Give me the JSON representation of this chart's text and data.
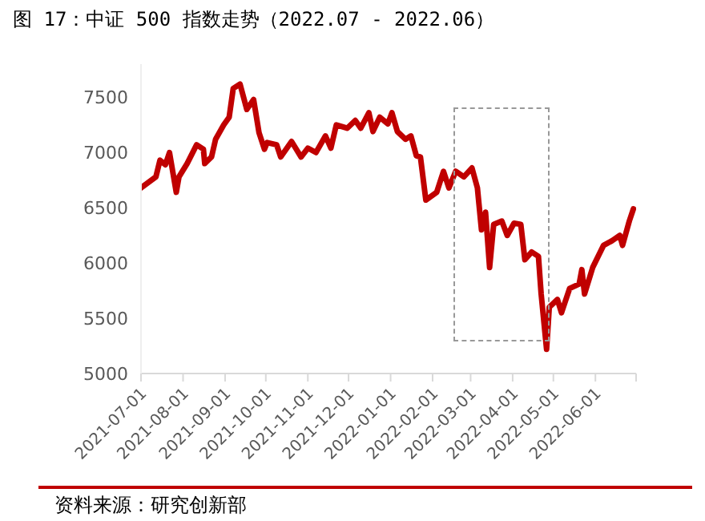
{
  "chart_data": {
    "type": "line",
    "title": "图 17：中证 500 指数走势（2022.07 - 2022.06）",
    "annotations": [
      "资料来源：研究创新部"
    ],
    "x": [
      "2021-07-01",
      "2021-07-12",
      "2021-07-15",
      "2021-07-19",
      "2021-07-22",
      "2021-07-27",
      "2021-07-29",
      "2021-08-04",
      "2021-08-11",
      "2021-08-16",
      "2021-08-17",
      "2021-08-22",
      "2021-08-25",
      "2021-08-31",
      "2021-09-04",
      "2021-09-07",
      "2021-09-12",
      "2021-09-17",
      "2021-09-22",
      "2021-09-26",
      "2021-09-30",
      "2021-10-02",
      "2021-10-09",
      "2021-10-12",
      "2021-10-20",
      "2021-10-27",
      "2021-11-01",
      "2021-11-07",
      "2021-11-14",
      "2021-11-18",
      "2021-11-22",
      "2021-11-30",
      "2021-12-06",
      "2021-12-10",
      "2021-12-16",
      "2021-12-19",
      "2021-12-24",
      "2021-12-30",
      "2022-01-02",
      "2022-01-06",
      "2022-01-12",
      "2022-01-16",
      "2022-01-20",
      "2022-01-23",
      "2022-01-27",
      "2022-02-04",
      "2022-02-09",
      "2022-02-13",
      "2022-02-18",
      "2022-02-24",
      "2022-03-02",
      "2022-03-06",
      "2022-03-09",
      "2022-03-12",
      "2022-03-15",
      "2022-03-18",
      "2022-03-24",
      "2022-03-28",
      "2022-04-02",
      "2022-04-07",
      "2022-04-10",
      "2022-04-15",
      "2022-04-20",
      "2022-04-22",
      "2022-04-26",
      "2022-04-28",
      "2022-05-04",
      "2022-05-07",
      "2022-05-13",
      "2022-05-20",
      "2022-05-22",
      "2022-05-24",
      "2022-05-30",
      "2022-06-07",
      "2022-06-13",
      "2022-06-19",
      "2022-06-21",
      "2022-06-26",
      "2022-06-29"
    ],
    "series": [
      {
        "color": "#c00000",
        "values": [
          6680,
          6780,
          6930,
          6890,
          7000,
          6640,
          6780,
          6900,
          7070,
          7030,
          6900,
          6960,
          7120,
          7250,
          7320,
          7580,
          7620,
          7390,
          7480,
          7180,
          7030,
          7090,
          7070,
          6960,
          7100,
          6960,
          7040,
          7000,
          7150,
          7040,
          7250,
          7220,
          7290,
          7220,
          7360,
          7190,
          7320,
          7260,
          7360,
          7190,
          7120,
          7150,
          6970,
          6960,
          6570,
          6640,
          6830,
          6680,
          6830,
          6780,
          6860,
          6680,
          6300,
          6460,
          5960,
          6350,
          6380,
          6250,
          6360,
          6350,
          6030,
          6100,
          6060,
          5720,
          5220,
          5600,
          5670,
          5550,
          5770,
          5810,
          5940,
          5720,
          5960,
          6160,
          6200,
          6250,
          6160,
          6380,
          6490
        ]
      }
    ],
    "xlim": [
      "2021-07-01",
      "2022-07-01"
    ],
    "xticks": [
      "2021-07-01",
      "2021-08-01",
      "2021-09-01",
      "2021-10-01",
      "2021-11-01",
      "2021-12-01",
      "2022-01-01",
      "2022-02-01",
      "2022-03-01",
      "2022-04-01",
      "2022-05-01",
      "2022-06-01",
      {
        "value": "2022-07-01",
        "label": null
      }
    ],
    "ylim": [
      5000,
      7800
    ],
    "yticks": [
      5000,
      5500,
      6000,
      6500,
      7000,
      7500
    ],
    "grid": false,
    "legend": false,
    "marker": "none",
    "line_style": "solid"
  }
}
